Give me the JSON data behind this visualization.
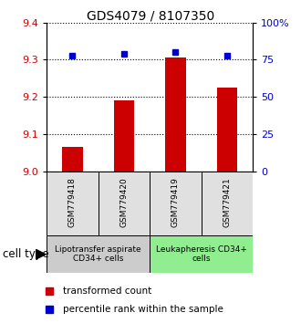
{
  "title": "GDS4079 / 8107350",
  "samples": [
    "GSM779418",
    "GSM779420",
    "GSM779419",
    "GSM779421"
  ],
  "bar_values": [
    9.065,
    9.19,
    9.305,
    9.225
  ],
  "percentile_values": [
    78,
    79,
    80,
    78
  ],
  "bar_color": "#cc0000",
  "dot_color": "#0000cc",
  "ylim_left": [
    9.0,
    9.4
  ],
  "ylim_right": [
    0,
    100
  ],
  "yticks_left": [
    9.0,
    9.1,
    9.2,
    9.3,
    9.4
  ],
  "yticks_right": [
    0,
    25,
    50,
    75,
    100
  ],
  "ytick_labels_right": [
    "0",
    "25",
    "50",
    "75",
    "100%"
  ],
  "cell_type_groups": [
    {
      "label": "Lipotransfer aspirate\nCD34+ cells",
      "indices": [
        0,
        1
      ],
      "color": "#cccccc"
    },
    {
      "label": "Leukapheresis CD34+\ncells",
      "indices": [
        2,
        3
      ],
      "color": "#90ee90"
    }
  ],
  "cell_type_label": "cell type",
  "legend_bar_label": "transformed count",
  "legend_dot_label": "percentile rank within the sample",
  "bar_width": 0.4,
  "axis_bg": "#e0e0e0",
  "chart_bg": "#ffffff"
}
